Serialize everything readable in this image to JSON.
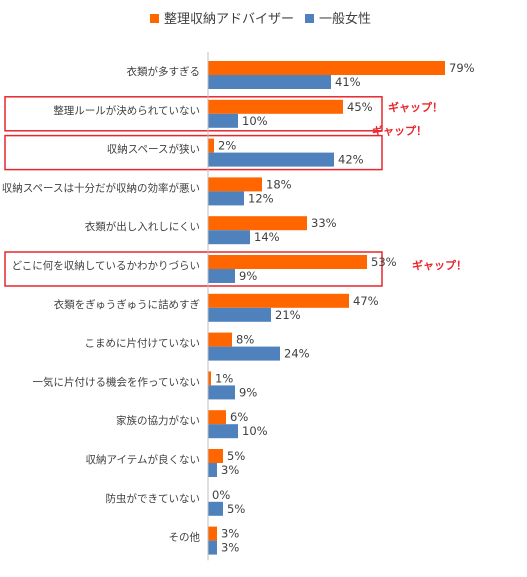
{
  "chart_data": {
    "type": "bar",
    "orientation": "horizontal",
    "categories": [
      "衣類が多すぎる",
      "整理ルールが決められていない",
      "収納スペースが狭い",
      "収納スペースは十分だが収納の効率が悪い",
      "衣類が出し入れしにくい",
      "どこに何を収納しているかわかりづらい",
      "衣類をぎゅうぎゅうに詰めすぎ",
      "こまめに片付けていない",
      "一気に片付ける機会を作っていない",
      "家族の協力がない",
      "収納アイテムが良くない",
      "防虫ができていない",
      "その他"
    ],
    "series": [
      {
        "name": "整理収納アドバイザー",
        "color": "#FF6600",
        "values": [
          79,
          45,
          2,
          18,
          33,
          53,
          47,
          8,
          1,
          6,
          5,
          0,
          3
        ],
        "labels": [
          "79%",
          "45%",
          "2%",
          "18%",
          "33%",
          "53%",
          "47%",
          "8%",
          "1%",
          "6%",
          "5%",
          "0%",
          "3%"
        ]
      },
      {
        "name": "一般女性",
        "color": "#4F81BD",
        "values": [
          41,
          10,
          42,
          12,
          14,
          9,
          21,
          24,
          9,
          10,
          3,
          5,
          3
        ],
        "labels": [
          "41%",
          "10%",
          "42%",
          "12%",
          "14%",
          "9%",
          "21%",
          "24%",
          "9%",
          "10%",
          "3%",
          "5%",
          "3%"
        ]
      }
    ],
    "xlim": [
      0,
      100
    ],
    "grid": false,
    "legend_position": "top",
    "highlights": [
      {
        "category_index": 1,
        "annotation": "ギャップ！"
      },
      {
        "category_index": 2,
        "annotation": "ギャップ！"
      },
      {
        "category_index": 5,
        "annotation": "ギャップ！"
      }
    ],
    "highlight_color": "#E8262E"
  }
}
